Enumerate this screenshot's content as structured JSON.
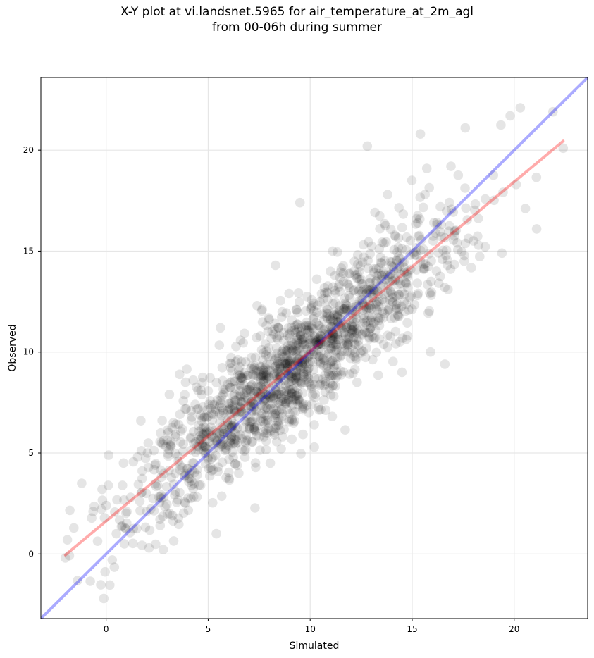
{
  "title_line1": "X-Y plot at vi.landsnet.5965 for air_temperature_at_2m_agl",
  "title_line2": "from 00-06h during summer",
  "chart_data": {
    "type": "scatter",
    "xlabel": "Simulated",
    "ylabel": "Observed",
    "xlim": [
      -3.2,
      23.6
    ],
    "ylim": [
      -3.2,
      23.6
    ],
    "xticks": [
      0,
      5,
      10,
      15,
      20
    ],
    "yticks": [
      0,
      5,
      10,
      15,
      20
    ],
    "grid": true,
    "colors": {
      "points": "#000000",
      "identity_line": "#0000ff",
      "regression_line": "#ff0000"
    },
    "point_alpha": 0.1,
    "identity_line": {
      "x": [
        -3.2,
        23.6
      ],
      "y": [
        -3.2,
        23.6
      ]
    },
    "regression_line": {
      "x": [
        -2.0,
        22.4
      ],
      "y": [
        -0.05,
        20.45
      ]
    },
    "n_points_approx": 1600,
    "sample_points": [
      [
        -2.0,
        -0.2
      ],
      [
        -1.9,
        0.7
      ],
      [
        -1.2,
        3.5
      ],
      [
        -0.2,
        3.2
      ],
      [
        0.1,
        3.4
      ],
      [
        0.0,
        2.4
      ],
      [
        0.3,
        -0.3
      ],
      [
        0.5,
        1.0
      ],
      [
        0.8,
        3.4
      ],
      [
        1.2,
        2.8
      ],
      [
        1.7,
        6.6
      ],
      [
        2.1,
        0.3
      ],
      [
        2.4,
        4.4
      ],
      [
        3.0,
        2.0
      ],
      [
        3.1,
        7.9
      ],
      [
        3.6,
        8.9
      ],
      [
        4.2,
        3.6
      ],
      [
        4.5,
        8.1
      ],
      [
        5.4,
        1.0
      ],
      [
        5.6,
        11.2
      ],
      [
        6.1,
        8.5
      ],
      [
        6.5,
        4.0
      ],
      [
        7.4,
        12.3
      ],
      [
        8.3,
        14.3
      ],
      [
        9.5,
        17.4
      ],
      [
        10.2,
        6.4
      ],
      [
        11.1,
        15.0
      ],
      [
        12.3,
        8.5
      ],
      [
        12.8,
        20.2
      ],
      [
        13.8,
        17.8
      ],
      [
        14.5,
        9.0
      ],
      [
        15.4,
        20.8
      ],
      [
        15.9,
        10.0
      ],
      [
        16.6,
        9.4
      ],
      [
        16.9,
        19.2
      ],
      [
        17.6,
        21.1
      ],
      [
        18.0,
        15.5
      ],
      [
        19.4,
        14.9
      ],
      [
        19.8,
        21.7
      ],
      [
        20.3,
        22.1
      ],
      [
        21.1,
        16.1
      ],
      [
        21.9,
        21.9
      ],
      [
        22.4,
        20.1
      ]
    ]
  }
}
